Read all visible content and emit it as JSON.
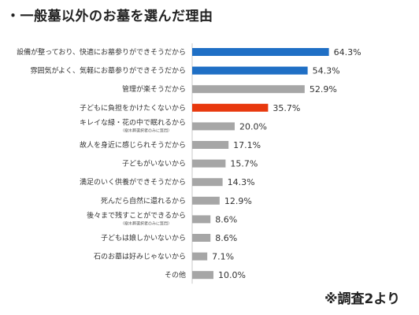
{
  "chart_data": {
    "type": "bar",
    "orientation": "horizontal",
    "title": "・一般墓以外のお墓を選んだ理由",
    "source_note": "※調査2より",
    "xlim": [
      0,
      70
    ],
    "grid": false,
    "legend": "none",
    "value_suffix": "%",
    "categories": [
      "設備が整っており、快適にお墓参りができそうだから",
      "雰囲気がよく、気軽にお墓参りができそうだから",
      "管理が楽そうだから",
      "子どもに負担をかけたくないから",
      "キレイな緑・花の中で眠れるから",
      "故人を身近に感じられそうだから",
      "子どもがいないから",
      "満足のいく供養ができそうだから",
      "死んだら自然に還れるから",
      "後々まで残すことができるから",
      "子どもは娘しかいないから",
      "石のお墓は好みじゃないから",
      "その他"
    ],
    "category_notes": [
      "",
      "",
      "",
      "",
      "（樹木葬選択者のみに質問）",
      "",
      "",
      "",
      "",
      "（樹木葬選択者のみに質問）",
      "",
      "",
      ""
    ],
    "values": [
      64.3,
      54.3,
      52.9,
      35.7,
      20.0,
      17.1,
      15.7,
      14.3,
      12.9,
      8.6,
      8.6,
      7.1,
      10.0
    ],
    "value_labels": [
      "64.3%",
      "54.3%",
      "52.9%",
      "35.7%",
      "20.0%",
      "17.1%",
      "15.7%",
      "14.3%",
      "12.9%",
      "8.6%",
      "8.6%",
      "7.1%",
      "10.0%"
    ],
    "colors": [
      "#1f6fc5",
      "#1f6fc5",
      "#a6a6a6",
      "#e8380d",
      "#a6a6a6",
      "#a6a6a6",
      "#a6a6a6",
      "#a6a6a6",
      "#a6a6a6",
      "#a6a6a6",
      "#a6a6a6",
      "#a6a6a6",
      "#a6a6a6"
    ]
  }
}
